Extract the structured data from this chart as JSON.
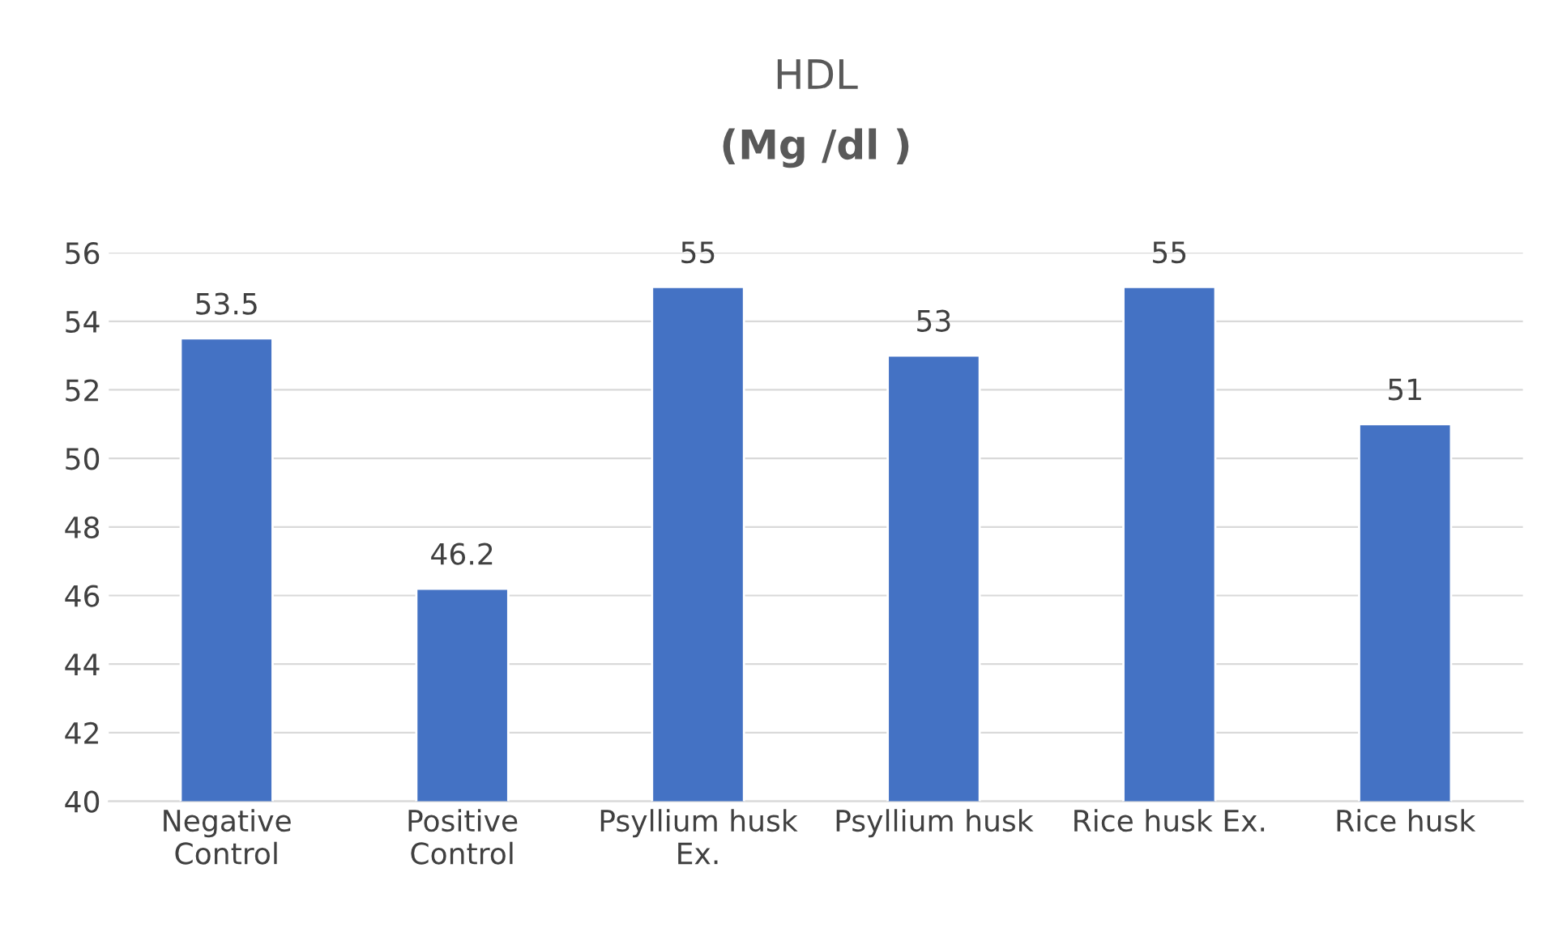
{
  "chart_data": {
    "type": "bar",
    "title": "HDL",
    "subtitle": "(Mg /dl )",
    "categories": [
      "Negative\nControl",
      "Positive\nControl",
      "Psyllium husk\nEx.",
      "Psyllium husk",
      "Rice husk Ex.",
      "Rice husk"
    ],
    "values": [
      53.5,
      46.2,
      55,
      53,
      55,
      51
    ],
    "color": "#4472c4",
    "ylim": [
      40,
      56
    ],
    "yticks": [
      40,
      42,
      44,
      46,
      48,
      50,
      52,
      54,
      56
    ],
    "grid": "y",
    "data_labels": true
  }
}
